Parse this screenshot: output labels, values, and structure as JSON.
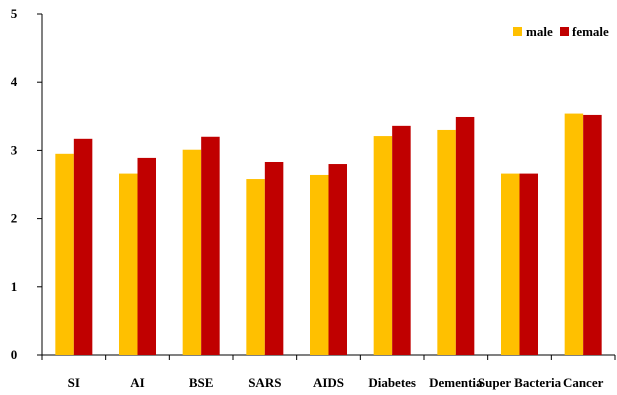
{
  "chart_data": {
    "type": "bar",
    "title": "",
    "xlabel": "",
    "ylabel": "",
    "ylim": [
      0,
      5
    ],
    "yticks": [
      0,
      1,
      2,
      3,
      4,
      5
    ],
    "grid": false,
    "legend_position": "top-right",
    "categories": [
      "SI",
      "AI",
      "BSE",
      "SARS",
      "AIDS",
      "Diabetes",
      "Dementia",
      "Super Bacteria",
      "Cancer"
    ],
    "series": [
      {
        "name": "male",
        "color": "#FFC000",
        "values": [
          2.95,
          2.66,
          3.01,
          2.58,
          2.64,
          3.21,
          3.3,
          2.66,
          3.54
        ]
      },
      {
        "name": "female",
        "color": "#C00000",
        "values": [
          3.17,
          2.89,
          3.2,
          2.83,
          2.8,
          3.36,
          3.49,
          2.66,
          3.52
        ]
      }
    ]
  }
}
